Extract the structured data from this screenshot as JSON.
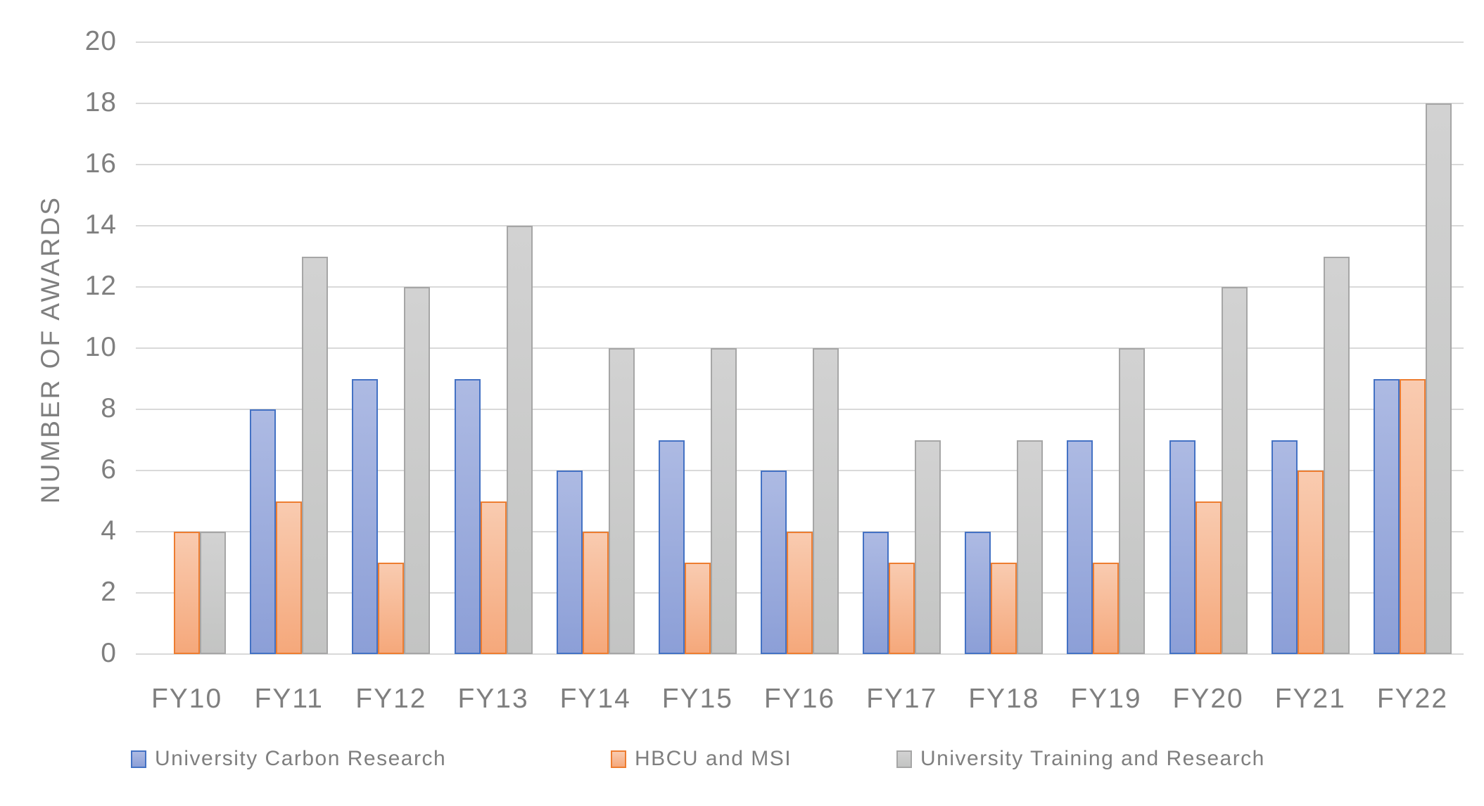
{
  "chart_data": {
    "type": "bar",
    "title": "",
    "xlabel": "",
    "ylabel": "NUMBER OF AWARDS",
    "ylim": [
      0,
      20
    ],
    "y_tick_step": 2,
    "y_tick_labels": [
      "0",
      "2",
      "4",
      "6",
      "8",
      "10",
      "12",
      "14",
      "16",
      "18",
      "20"
    ],
    "grid": true,
    "legend_position": "bottom",
    "categories": [
      "FY10",
      "FY11",
      "FY12",
      "FY13",
      "FY14",
      "FY15",
      "FY16",
      "FY17",
      "FY18",
      "FY19",
      "FY20",
      "FY21",
      "FY22"
    ],
    "series": [
      {
        "name": "University Carbon Research",
        "values": [
          0,
          8,
          9,
          9,
          6,
          7,
          6,
          4,
          4,
          7,
          7,
          7,
          9
        ],
        "border_color": "#4472C4",
        "fill_top": "#ADBAE3",
        "fill_bottom": "#8C9FD7"
      },
      {
        "name": "HBCU and MSI",
        "values": [
          4,
          5,
          3,
          5,
          4,
          3,
          4,
          3,
          3,
          3,
          5,
          6,
          9
        ],
        "border_color": "#ED7D31",
        "fill_top": "#F9CBB0",
        "fill_bottom": "#F5A87B"
      },
      {
        "name": "University Training and Research",
        "values": [
          4,
          13,
          12,
          14,
          10,
          10,
          10,
          7,
          7,
          10,
          12,
          13,
          18
        ],
        "border_color": "#A6A6A6",
        "fill_top": "#D2D2D2",
        "fill_bottom": "#C3C4C3"
      }
    ],
    "colors": {
      "text": "#7F7F7F",
      "gridline": "#D9D9D9",
      "background": "#FFFFFF"
    }
  }
}
